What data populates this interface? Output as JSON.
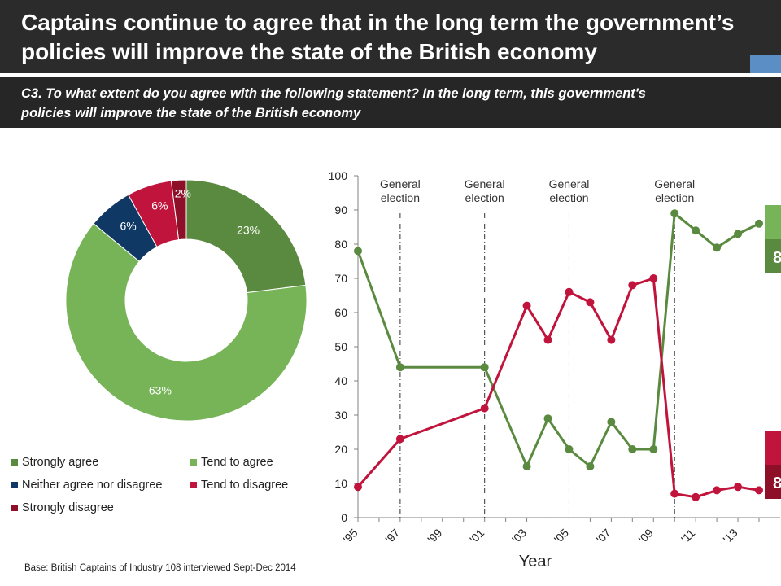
{
  "header": {
    "title_line1": "Captains continue to agree that in the long term the government’s",
    "title_line2": "policies will improve the state of the British economy",
    "question_line1": "C3. To what extent do you agree with the following statement? In the long term, this government's",
    "question_line2": "policies will improve the state of the British economy"
  },
  "footer": {
    "base_note": "Base: British Captains of Industry 108 interviewed Sept-Dec 2014"
  },
  "colors": {
    "strongly_agree": "#5a8a3f",
    "tend_to_agree": "#77b457",
    "neither": "#0f3864",
    "tend_to_disagree": "#c0143c",
    "strongly_disagree": "#8e1028",
    "agree_line": "#5a8a3f",
    "disagree_line": "#c0143c",
    "title_bar": "#2b2b2b",
    "accent": "#5b8ec4"
  },
  "chart_data": [
    {
      "type": "pie",
      "variant": "donut",
      "slices": [
        {
          "label": "Strongly agree",
          "value": 23,
          "display": "23%",
          "color": "#5a8a3f"
        },
        {
          "label": "Tend to agree",
          "value": 63,
          "display": "63%",
          "color": "#77b457"
        },
        {
          "label": "Neither agree nor disagree",
          "value": 6,
          "display": "6%",
          "color": "#0f3864"
        },
        {
          "label": "Tend to disagree",
          "value": 6,
          "display": "6%",
          "color": "#c0143c"
        },
        {
          "label": "Strongly disagree",
          "value": 2,
          "display": "2%",
          "color": "#8e1028"
        }
      ],
      "legend": [
        {
          "label": "Strongly agree",
          "color": "#5a8a3f"
        },
        {
          "label": "Tend to agree",
          "color": "#77b457"
        },
        {
          "label": "Neither agree nor disagree",
          "color": "#0f3864"
        },
        {
          "label": "Tend to disagree",
          "color": "#c0143c"
        },
        {
          "label": "Strongly disagree",
          "color": "#8e1028"
        }
      ],
      "legend_position": "bottom"
    },
    {
      "type": "line",
      "xlabel": "Year",
      "ylabel": "",
      "xlim": [
        1995,
        2014
      ],
      "ylim": [
        0,
        100
      ],
      "yticks": [
        0,
        10,
        20,
        30,
        40,
        50,
        60,
        70,
        80,
        90,
        100
      ],
      "xticks": [
        {
          "x": 1995,
          "label": "'95"
        },
        {
          "x": 1997,
          "label": "'97"
        },
        {
          "x": 1999,
          "label": "'99"
        },
        {
          "x": 2001,
          "label": "'01"
        },
        {
          "x": 2003,
          "label": "'03"
        },
        {
          "x": 2005,
          "label": "'05"
        },
        {
          "x": 2007,
          "label": "'07"
        },
        {
          "x": 2009,
          "label": "'09"
        },
        {
          "x": 2011,
          "label": "'11"
        },
        {
          "x": 2013,
          "label": "'13"
        }
      ],
      "annotations": [
        {
          "x": 1997,
          "label": "General election"
        },
        {
          "x": 2001,
          "label": "General election"
        },
        {
          "x": 2005,
          "label": "General election"
        },
        {
          "x": 2010,
          "label": "General election"
        }
      ],
      "series": [
        {
          "color": "#5a8a3f",
          "x": [
            1995,
            1997,
            2001,
            2003,
            2004,
            2005,
            2006,
            2007,
            2008,
            2009,
            2010,
            2011,
            2012,
            2013,
            2014
          ],
          "y": [
            78,
            44,
            44,
            15,
            29,
            20,
            15,
            28,
            20,
            20,
            89,
            84,
            79,
            83,
            86
          ]
        },
        {
          "color": "#c0143c",
          "x": [
            1995,
            1997,
            2001,
            2003,
            2004,
            2005,
            2006,
            2007,
            2008,
            2009,
            2010,
            2011,
            2012,
            2013,
            2014
          ],
          "y": [
            9,
            23,
            32,
            62,
            52,
            66,
            63,
            52,
            68,
            70,
            7,
            6,
            8,
            9,
            8
          ]
        }
      ],
      "grid": false,
      "end_markers": [
        {
          "glyph": "",
          "color": "#77b457"
        },
        {
          "glyph": "8",
          "color": "#5a8a3f"
        },
        {
          "glyph": "",
          "color": "#c0143c"
        },
        {
          "glyph": "8",
          "color": "#8e1028"
        }
      ]
    }
  ]
}
